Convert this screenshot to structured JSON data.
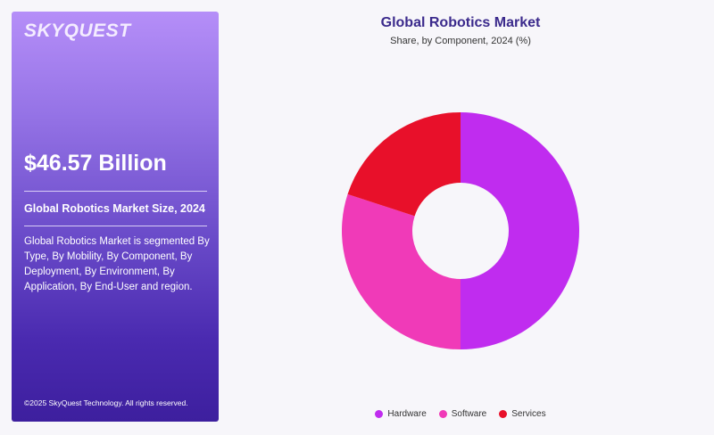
{
  "panel": {
    "logo": "SKYQUEST",
    "market_size": "$46.57 Billion",
    "market_size_label": "Global Robotics Market Size, 2024",
    "description": "Global Robotics Market is segmented By Type, By Mobility, By Component, By Deployment, By Environment, By Application, By End-User and region.",
    "copyright": "©2025 SkyQuest Technology. All rights reserved."
  },
  "chart_data": {
    "type": "pie",
    "donut": true,
    "title": "Global Robotics Market",
    "subtitle": "Share, by Component, 2024 (%)",
    "categories": [
      "Hardware",
      "Software",
      "Services"
    ],
    "values": [
      50,
      30,
      20
    ],
    "colors": [
      "#c02cef",
      "#f03ab8",
      "#e8102a"
    ],
    "legend_position": "bottom"
  }
}
